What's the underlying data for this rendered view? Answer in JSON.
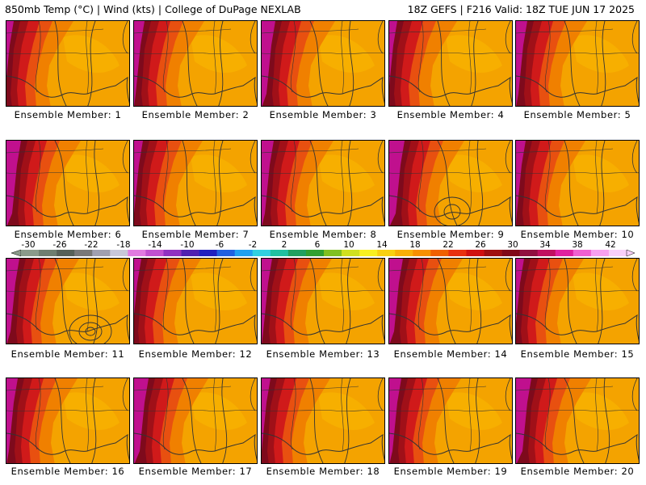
{
  "header": {
    "left": "850mb Temp (°C) | Wind (kts) | College of DuPage NEXLAB",
    "right": "18Z GEFS | F216 Valid: 18Z TUE JUN 17 2025"
  },
  "members": [
    "Ensemble Member: 1",
    "Ensemble Member: 2",
    "Ensemble Member: 3",
    "Ensemble Member: 4",
    "Ensemble Member: 5",
    "Ensemble Member: 6",
    "Ensemble Member: 7",
    "Ensemble Member: 8",
    "Ensemble Member: 9",
    "Ensemble Member: 10",
    "Ensemble Member: 11",
    "Ensemble Member: 12",
    "Ensemble Member: 13",
    "Ensemble Member: 14",
    "Ensemble Member: 15",
    "Ensemble Member: 16",
    "Ensemble Member: 17",
    "Ensemble Member: 18",
    "Ensemble Member: 19",
    "Ensemble Member: 20"
  ],
  "colorbar": {
    "labels": [
      "-30",
      "-26",
      "-22",
      "-18",
      "-14",
      "-10",
      "-6",
      "-2",
      "2",
      "6",
      "10",
      "14",
      "18",
      "22",
      "26",
      "30",
      "34",
      "38",
      "42"
    ],
    "colors": [
      "#8a9a8a",
      "#6e7e70",
      "#566058",
      "#787878",
      "#a0a0b0",
      "#c8c8d8",
      "#e07ae0",
      "#c050d0",
      "#9030c0",
      "#5020b0",
      "#2020c0",
      "#2060e0",
      "#20a0f0",
      "#30d0e0",
      "#20c0a0",
      "#20a060",
      "#30a030",
      "#80c020",
      "#d0e020",
      "#f8f020",
      "#f8d010",
      "#f8b008",
      "#f89000",
      "#f06000",
      "#e83010",
      "#d01010",
      "#a01010",
      "#800818",
      "#901040",
      "#c01060",
      "#e020a0",
      "#f060d0",
      "#f8a0f0",
      "#f8d0f8"
    ]
  },
  "palette": {
    "orange": "#f4a300",
    "light_orange": "#f8b400",
    "dark_orange": "#f08000",
    "red_orange": "#e85010",
    "red": "#d01a1a",
    "dark_red": "#a01018",
    "maroon": "#7e0a1c",
    "magenta": "#c0108e",
    "pink": "#e040b0"
  }
}
